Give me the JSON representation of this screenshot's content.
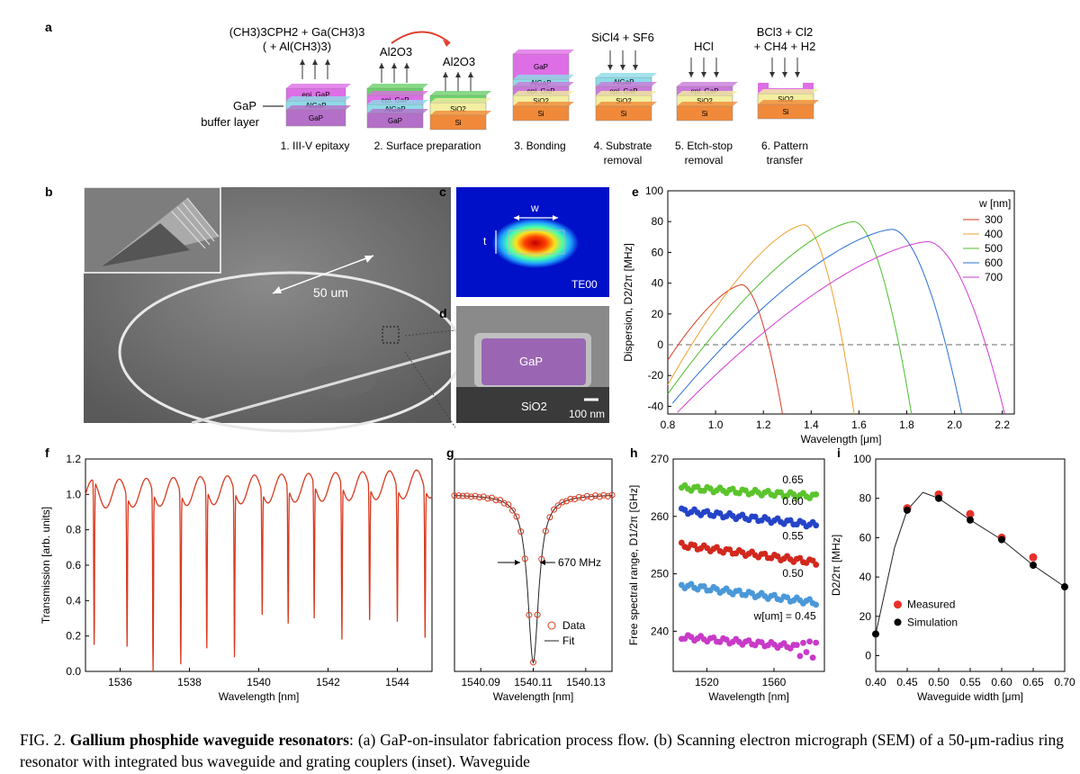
{
  "panel_labels": {
    "a": "a",
    "b": "b",
    "c": "c",
    "d": "d",
    "e": "e",
    "f": "f",
    "g": "g",
    "h": "h",
    "i": "i"
  },
  "process": {
    "steps": [
      {
        "number_label": "1. III-V epitaxy",
        "reagents": [
          "(CH3)3CPH2 + Ga(CH3)3",
          "( + Al(CH3)3)"
        ],
        "layers": [
          "epi. GaP",
          "AlGaP",
          "GaP"
        ]
      },
      {
        "number_label": "2. Surface preparation",
        "reagents": [
          "Al2O3",
          "Al2O3"
        ],
        "layers_left": [
          "epi. GaP",
          "AlGaP",
          "GaP"
        ],
        "layers_right": [
          "SiO2",
          "Si"
        ]
      },
      {
        "number_label": "3. Bonding",
        "layers": [
          "GaP",
          "AlGaP",
          "epi. GaP",
          "SiO2",
          "Si"
        ]
      },
      {
        "number_label": "4. Substrate removal",
        "reagents": [
          "SiCl4 + SF6"
        ],
        "layers": [
          "AlGaP",
          "epi. GaP",
          "SiO2",
          "Si"
        ]
      },
      {
        "number_label": "5. Etch-stop removal",
        "reagents": [
          "HCl"
        ],
        "layers": [
          "epi. GaP",
          "SiO2",
          "Si"
        ]
      },
      {
        "number_label": "6. Pattern transfer",
        "reagents": [
          "BCl3 + Cl2",
          "+ CH4 + H2"
        ],
        "layers": [
          "SiO2",
          "Si"
        ]
      }
    ],
    "buffer_label": "GaP buffer layer",
    "colors": {
      "gap": "#b46fc8",
      "algap": "#8fdbe8",
      "epi": "#c97ad9",
      "sio2": "#f3eea0",
      "si": "#f08a3a",
      "al2o3": "#6cd06c",
      "top_gap": "#de6ee6"
    }
  },
  "sem": {
    "scale_label": "50 um"
  },
  "mode": {
    "w_label": "w",
    "t_label": "t",
    "mode_label": "TE00"
  },
  "xsec": {
    "core_label": "GaP",
    "substrate_label": "SiO2",
    "scale_label": "100 nm"
  },
  "chart_data": [
    {
      "panel": "e",
      "type": "line",
      "xlabel": "Wavelength [μm]",
      "ylabel": "Dispersion, D2/2π [MHz]",
      "xlim": [
        0.8,
        2.25
      ],
      "ylim": [
        -45,
        100
      ],
      "xticks": [
        "0.8",
        "1.0",
        "1.2",
        "1.4",
        "1.6",
        "1.8",
        "2.0",
        "2.2"
      ],
      "yticks": [
        "-40",
        "-20",
        "0",
        "20",
        "40",
        "60",
        "80",
        "100"
      ],
      "legend_title": "w [nm]",
      "series": [
        {
          "name": "300",
          "color": "#d93a1f",
          "peak": [
            1.11,
            39
          ],
          "x": [
            0.8,
            1.28
          ]
        },
        {
          "name": "400",
          "color": "#f0a030",
          "peak": [
            1.37,
            78
          ],
          "x": [
            0.8,
            1.58
          ]
        },
        {
          "name": "500",
          "color": "#4cbf2c",
          "peak": [
            1.58,
            80
          ],
          "x": [
            0.8,
            1.82
          ]
        },
        {
          "name": "600",
          "color": "#2a6fd6",
          "peak": [
            1.74,
            75
          ],
          "x": [
            0.82,
            2.03
          ]
        },
        {
          "name": "700",
          "color": "#d23ad3",
          "peak": [
            1.89,
            67
          ],
          "x": [
            0.84,
            2.21
          ]
        }
      ]
    },
    {
      "panel": "f",
      "type": "line",
      "xlabel": "Wavelength [nm]",
      "ylabel": "Transmission [arb. units]",
      "xlim": [
        1535,
        1545
      ],
      "ylim": [
        0,
        1.2
      ],
      "xticks": [
        "1536",
        "1538",
        "1540",
        "1542",
        "1544"
      ],
      "yticks": [
        "0.0",
        "0.2",
        "0.4",
        "0.6",
        "0.8",
        "1.0",
        "1.2"
      ],
      "dips": [
        1535.25,
        1536.2,
        1536.95,
        1537.75,
        1538.5,
        1539.3,
        1540.1,
        1540.85,
        1541.6,
        1542.4,
        1543.2,
        1544.0,
        1544.8
      ],
      "dip_depths": [
        0.15,
        0.14,
        0.0,
        0.04,
        0.13,
        0.08,
        0.32,
        0.27,
        0.3,
        0.18,
        0.29,
        0.28,
        0.19
      ],
      "color": "#d93a1f"
    },
    {
      "panel": "g",
      "type": "scatter",
      "xlabel": "Wavelength [nm]",
      "xticks": [
        "1540.09",
        "1540.11",
        "1540.13"
      ],
      "xlim": [
        1540.08,
        1540.14
      ],
      "center": 1540.11,
      "linewidth_label": "670 MHz",
      "legend": [
        "Data",
        "Fit"
      ]
    },
    {
      "panel": "h",
      "type": "scatter",
      "xlabel": "Wavelength [nm]",
      "ylabel": "Free spectral range, D1/2π [GHz]",
      "xlim": [
        1500,
        1590
      ],
      "ylim": [
        233,
        270
      ],
      "xticks": [
        "1520",
        "1560"
      ],
      "yticks": [
        "240",
        "250",
        "260",
        "270"
      ],
      "series": [
        {
          "name": "0.65",
          "label": "0.65",
          "color": "#5bc42c",
          "start": 265,
          "end": 263.5
        },
        {
          "name": "0.60",
          "label": "0.60",
          "color": "#2444c8",
          "start": 261,
          "end": 258.5
        },
        {
          "name": "0.55",
          "label": "0.55",
          "color": "#d2281e",
          "start": 255,
          "end": 252
        },
        {
          "name": "0.50",
          "label": "0.50",
          "color": "#4a98d8",
          "start": 248,
          "end": 245
        },
        {
          "name": "0.45",
          "label": "w[um] = 0.45",
          "color": "#c83ac8",
          "start": 239,
          "end": 237
        }
      ]
    },
    {
      "panel": "i",
      "type": "line",
      "xlabel": "Waveguide width [μm]",
      "ylabel": "D2/2π [MHz]",
      "xlim": [
        0.4,
        0.7
      ],
      "ylim": [
        -8,
        100
      ],
      "xticks": [
        "0.40",
        "0.45",
        "0.50",
        "0.55",
        "0.60",
        "0.65",
        "0.70"
      ],
      "yticks": [
        "0",
        "20",
        "40",
        "60",
        "80",
        "100"
      ],
      "measured": {
        "name": "Measured",
        "x": [
          0.45,
          0.5,
          0.55,
          0.6,
          0.65
        ],
        "y": [
          75,
          82,
          72,
          60,
          50
        ]
      },
      "simulation": {
        "name": "Simulation",
        "x": [
          0.4,
          0.45,
          0.5,
          0.55,
          0.6,
          0.65,
          0.7
        ],
        "y": [
          11,
          74,
          80,
          69,
          59,
          46,
          35
        ]
      }
    }
  ],
  "caption": {
    "lead": "FIG. 2.",
    "title": "Gallium phosphide waveguide resonators",
    "text": ": (a) GaP-on-insulator fabrication process flow. (b) Scanning electron micrograph (SEM) of a 50-μm-radius ring resonator with integrated bus waveguide and grating couplers (inset). Waveguide"
  }
}
